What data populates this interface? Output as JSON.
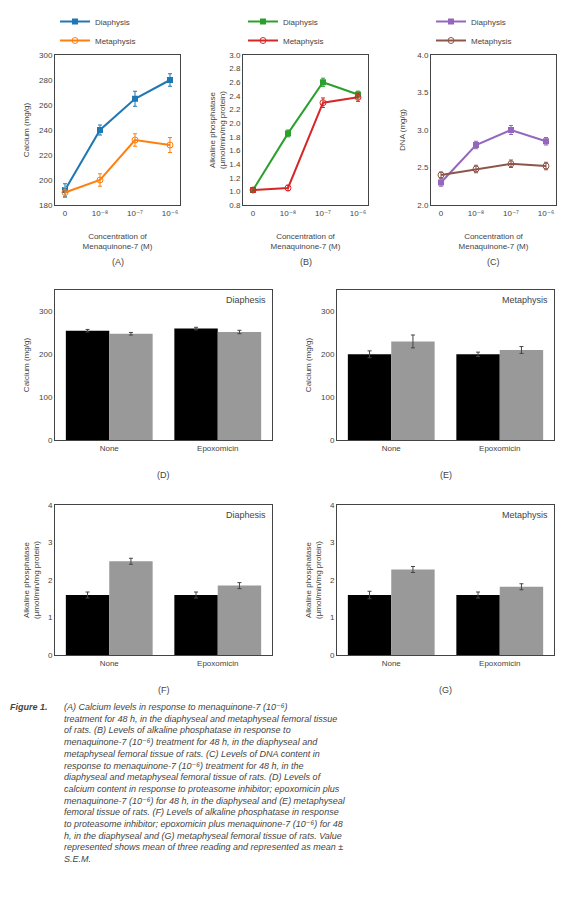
{
  "chart_data": [
    {
      "type": "line",
      "xlabel": "Concentration of Menaquinone-7 (M)",
      "ylabel": "Calcium (mg/g)",
      "categories": [
        "0",
        "10⁻⁸",
        "10⁻⁷",
        "10⁻⁶"
      ],
      "series": [
        {
          "name": "Diaphysis",
          "marker": "square",
          "values": [
            192,
            240,
            265,
            280
          ],
          "errors": [
            5,
            4,
            6,
            5
          ]
        },
        {
          "name": "Metaphysis",
          "marker": "circle-open",
          "values": [
            190,
            200,
            232,
            228
          ],
          "errors": [
            4,
            5,
            5,
            6
          ]
        }
      ],
      "ylim": [
        180,
        300
      ],
      "yticks": [
        180,
        200,
        220,
        240,
        260,
        280,
        300
      ],
      "grid": false,
      "legend": "upper left",
      "annotations": [
        "(A)"
      ]
    },
    {
      "type": "line",
      "xlabel": "Concentration of Menaquinone-7 (M)",
      "ylabel": "Alkaline phosphatase (μmol/min/mg protein)",
      "categories": [
        "0",
        "10⁻⁸",
        "10⁻⁷",
        "10⁻⁶"
      ],
      "series": [
        {
          "name": "Diaphysis",
          "marker": "square",
          "values": [
            1.02,
            1.85,
            2.6,
            2.42
          ],
          "errors": [
            0.03,
            0.05,
            0.06,
            0.05
          ]
        },
        {
          "name": "Metaphysis",
          "marker": "circle-open",
          "values": [
            1.02,
            1.05,
            2.3,
            2.38
          ],
          "errors": [
            0.03,
            0.04,
            0.07,
            0.06
          ]
        }
      ],
      "ylim": [
        0.8,
        3.0
      ],
      "yticks": [
        0.8,
        {
          "value": 1.0,
          "label": "1.0"
        },
        1.2,
        1.4,
        1.6,
        1.8,
        {
          "value": 2.0,
          "label": "2.0"
        },
        2.2,
        2.4,
        2.6,
        2.8,
        {
          "value": 3.0,
          "label": "3.0"
        }
      ],
      "grid": false,
      "legend": "upper left",
      "annotations": [
        "(B)"
      ]
    },
    {
      "type": "line",
      "xlabel": "Concentration of Menaquinone-7 (M)",
      "ylabel": "DNA (mg/g)",
      "categories": [
        "0",
        "10⁻⁸",
        "10⁻⁷",
        "10⁻⁶"
      ],
      "series": [
        {
          "name": "Diaphysis",
          "marker": "square",
          "values": [
            2.3,
            2.8,
            3.0,
            2.85
          ],
          "errors": [
            0.05,
            0.05,
            0.06,
            0.05
          ]
        },
        {
          "name": "Metaphysis",
          "marker": "circle-open",
          "values": [
            2.4,
            2.48,
            2.55,
            2.52
          ],
          "errors": [
            0.04,
            0.05,
            0.05,
            0.05
          ]
        }
      ],
      "ylim": [
        2.0,
        4.0
      ],
      "yticks": [
        {
          "value": 2.0,
          "label": "2.0"
        },
        2.5,
        {
          "value": 3.0,
          "label": "3.0"
        },
        3.5,
        {
          "value": 4.0,
          "label": "4.0"
        }
      ],
      "grid": false,
      "legend": "upper left",
      "annotations": [
        "(C)"
      ]
    },
    {
      "type": "bar",
      "title": "Diaphesis",
      "ylabel": "Calcium (mg/g)",
      "categories": [
        "None",
        "Epoxomicin"
      ],
      "series": [
        {
          "color": "#000000",
          "values": [
            255,
            260
          ],
          "errors": [
            3,
            3
          ]
        },
        {
          "color": "#999999",
          "values": [
            248,
            252
          ],
          "errors": [
            3,
            4
          ]
        }
      ],
      "ylim": [
        0,
        350
      ],
      "yticks": [
        0,
        100,
        200,
        300
      ],
      "grid": false,
      "annotations": [
        "(D)"
      ]
    },
    {
      "type": "bar",
      "title": "Metaphysis",
      "ylabel": "Calcium (mg/g)",
      "categories": [
        "None",
        "Epoxomicin"
      ],
      "series": [
        {
          "color": "#000000",
          "values": [
            200,
            200
          ],
          "errors": [
            8,
            5
          ]
        },
        {
          "color": "#999999",
          "values": [
            230,
            210
          ],
          "errors": [
            15,
            8
          ]
        }
      ],
      "ylim": [
        0,
        350
      ],
      "yticks": [
        0,
        100,
        200,
        300
      ],
      "grid": false,
      "annotations": [
        "(E)"
      ]
    },
    {
      "type": "bar",
      "title": "Diaphesis",
      "ylabel": "Alkaline phosphatase (μmol/min/mg protein)",
      "categories": [
        "None",
        "Epoxomicin"
      ],
      "series": [
        {
          "color": "#000000",
          "values": [
            1.6,
            1.6
          ],
          "errors": [
            0.08,
            0.08
          ]
        },
        {
          "color": "#999999",
          "values": [
            2.5,
            1.85
          ],
          "errors": [
            0.08,
            0.08
          ]
        }
      ],
      "ylim": [
        0,
        4
      ],
      "yticks": [
        0,
        1,
        2,
        3,
        4
      ],
      "grid": false,
      "annotations": [
        "(F)"
      ]
    },
    {
      "type": "bar",
      "title": "Metaphysis",
      "ylabel": "Alkaline phosphatase (μmol/min/mg protein)",
      "categories": [
        "None",
        "Epoxomicin"
      ],
      "series": [
        {
          "color": "#000000",
          "values": [
            1.6,
            1.6
          ],
          "errors": [
            0.1,
            0.08
          ]
        },
        {
          "color": "#999999",
          "values": [
            2.28,
            1.82
          ],
          "errors": [
            0.08,
            0.08
          ]
        }
      ],
      "ylim": [
        0,
        4
      ],
      "yticks": [
        0,
        1,
        2,
        3,
        4
      ],
      "grid": false,
      "annotations": [
        "(G)"
      ]
    }
  ],
  "caption": "Figure 1. (A) Calcium levels in response to menaquinone-7 (10⁻⁶)\ntreatment for 48 h, in the diaphyseal and metaphyseal femoral tissue\nof rats. (B) Levels of alkaline phosphatase in response to\nmenaquinone-7 (10⁻⁶) treatment for 48 h, in the diaphyseal and\nmetaphyseal femoral tissue of rats. (C) Levels of DNA content in\nresponse to menaquinone-7 (10⁻⁶) treatment for 48 h, in the\ndiaphyseal and metaphyseal femoral tissue of rats. (D) Levels of\ncalcium content in response to proteasome inhibitor; epoxomicin plus\nmenaquinone-7 (10⁻⁶) for 48 h, in the diaphyseal and (E) metaphyseal\nfemoral tissue of rats. (F) Levels of alkaline phosphatase in response\nto proteasome inhibitor; epoxomicin plus menaquinone-7 (10⁻⁶) for 48\nh, in the diaphyseal and (G) metaphyseal femoral tissue of rats. Value\nrepresented shows mean of three reading and represented as mean ±\nS.E.M."
}
